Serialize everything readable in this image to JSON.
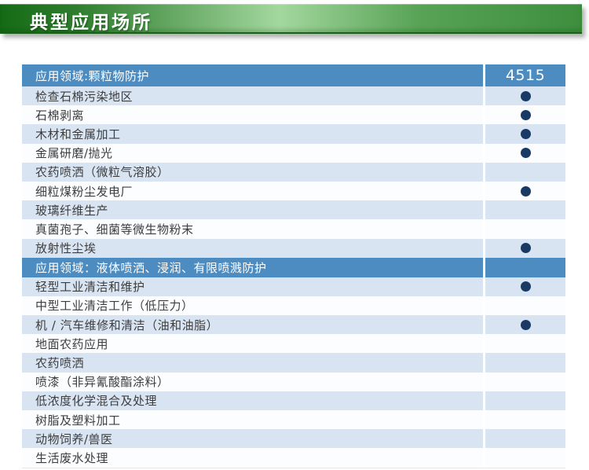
{
  "banner": {
    "title": "典型应用场所"
  },
  "table": {
    "product_column": "4515",
    "sections": [
      {
        "header": "应用领域:颗粒物防护",
        "rows": [
          {
            "label": "检查石棉污染地区",
            "dot": true
          },
          {
            "label": "石棉剥离",
            "dot": true
          },
          {
            "label": "木材和金属加工",
            "dot": true
          },
          {
            "label": "金属研磨/抛光",
            "dot": true
          },
          {
            "label": "农药喷洒（微粒气溶胶）",
            "dot": false
          },
          {
            "label": "细粒煤粉尘发电厂",
            "dot": true
          },
          {
            "label": "玻璃纤维生产",
            "dot": false
          },
          {
            "label": "真菌孢子、细菌等微生物粉末",
            "dot": false
          },
          {
            "label": "放射性尘埃",
            "dot": true
          }
        ]
      },
      {
        "header": "应用领域：液体喷洒、浸润、有限喷溅防护",
        "rows": [
          {
            "label": "轻型工业清洁和维护",
            "dot": true
          },
          {
            "label": "中型工业清洁工作（低压力）",
            "dot": false
          },
          {
            "label": "机 / 汽车维修和清洁（油和油脂）",
            "dot": true
          },
          {
            "label": "地面农药应用",
            "dot": false
          },
          {
            "label": "农药喷洒",
            "dot": false
          },
          {
            "label": "喷漆（非异氰酸酯涂料）",
            "dot": false
          },
          {
            "label": "低浓度化学混合及处理",
            "dot": false
          },
          {
            "label": "树脂及塑料加工",
            "dot": false
          },
          {
            "label": "动物饲养/兽医",
            "dot": false
          },
          {
            "label": "生活废水处理",
            "dot": false
          }
        ]
      }
    ]
  },
  "colors": {
    "header_blue": "#4c8cc1",
    "row_alt_blue": "#d9e4f2",
    "row_white": "#fcfdff",
    "dot_navy": "#1a3a66",
    "banner_dark_green": "#156b15",
    "banner_light_green": "#a3d79e",
    "text_dark": "#3d3d3d"
  }
}
